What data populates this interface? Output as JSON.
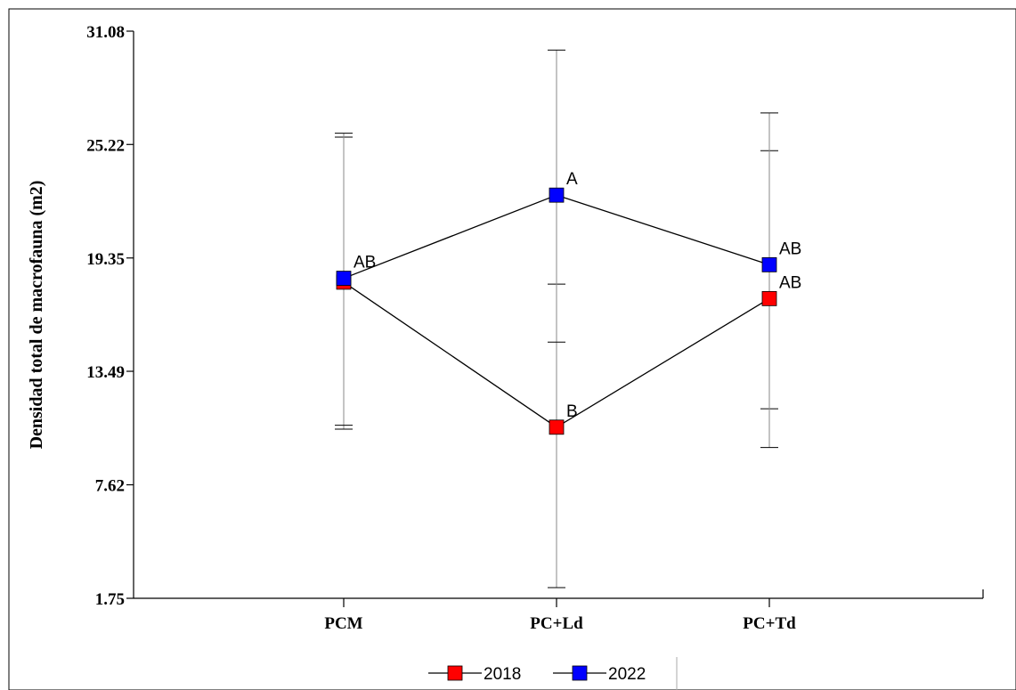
{
  "chart_data": {
    "type": "line",
    "ylabel": "Densidad total de macrofauna (m2)",
    "xlabel": "",
    "categories": [
      "PCM",
      "PC+Ld",
      "PC+Td"
    ],
    "yticks": [
      "1.75",
      "7.62",
      "13.49",
      "19.35",
      "25.22",
      "31.08"
    ],
    "ylim": [
      1.75,
      31.08
    ],
    "grid": false,
    "legend_position": "bottom",
    "series": [
      {
        "name": "2018",
        "color": "#ff0000",
        "values": [
          18.1,
          10.6,
          17.25
        ],
        "err_low": [
          10.5,
          2.3,
          11.55
        ],
        "err_high": [
          25.6,
          18.0,
          24.9
        ],
        "labels": [
          "",
          "B",
          "AB"
        ]
      },
      {
        "name": "2022",
        "color": "#0000ff",
        "values": [
          18.3,
          22.6,
          19.0
        ],
        "err_low": [
          10.7,
          15.0,
          9.55
        ],
        "err_high": [
          25.8,
          30.1,
          26.85
        ],
        "labels": [
          "AB",
          "A",
          "AB"
        ]
      }
    ]
  }
}
